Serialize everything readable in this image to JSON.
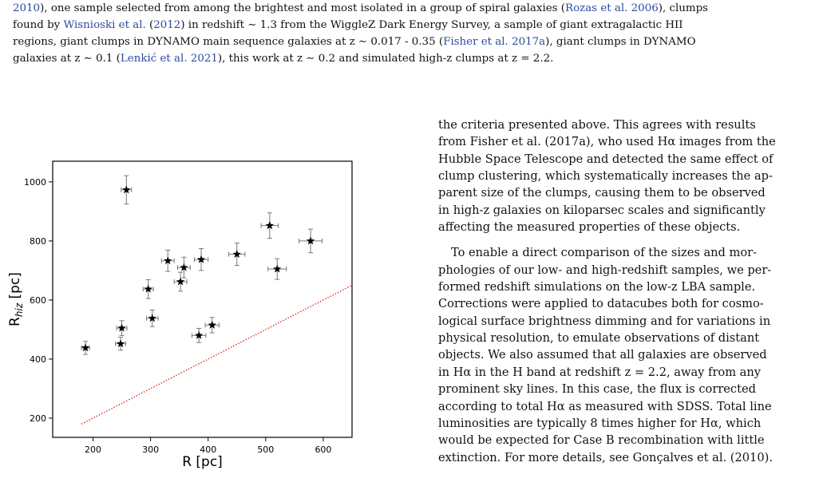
{
  "caption": {
    "lines": [
      [
        "",
        "2010",
        "), one sample selected from among the brightest and most isolated in a group of spiral galaxies (",
        "Rozas et al. 2006",
        "), clumps"
      ],
      [
        "found by ",
        "Wisnioski et al.",
        " (",
        "2012",
        ") in redshift ∼ 1.3 from the WiggleZ Dark Energy Survey, a sample of giant extragalactic HII"
      ],
      [
        "regions, giant clumps in DYNAMO main sequence galaxies at z ∼ 0.017 - 0.35 (",
        "Fisher et al. 2017a",
        "), giant clumps in DYNAMO"
      ],
      [
        "galaxies at z ∼ 0.1 (",
        "Lenkić et al. 2021",
        "), this work at z ∼ 0.2 and simulated high-z clumps at z = 2.2."
      ]
    ]
  },
  "body_text": {
    "para1": [
      "the criteria presented above. This agrees with results",
      "from Fisher et al. (2017a), who used Hα images from the",
      "Hubble Space Telescope and detected the same effect of",
      "clump clustering, which systematically increases the ap-",
      "parent size of the clumps, causing them to be observed",
      "in high-z galaxies on kiloparsec scales and significantly",
      "affecting the measured properties of these objects."
    ],
    "para2": [
      "To enable a direct comparison of the sizes and mor-",
      "phologies of our low- and high-redshift samples, we per-",
      "formed redshift simulations on the low-z LBA sample.",
      "Corrections were applied to datacubes both for cosmo-",
      "logical surface brightness dimming and for variations in",
      "physical resolution, to emulate observations of distant",
      "objects. We also assumed that all galaxies are observed",
      "in Hα in the H band at redshift z = 2.2, away from any",
      "prominent sky lines. In this case, the flux is corrected",
      "according to total Hα as measured with SDSS. Total line",
      "luminosities are typically 8 times higher for Hα, which",
      "would be expected for Case B recombination with little",
      "extinction. For more details, see Gonçalves et al. (2010)."
    ]
  },
  "chart_data": {
    "type": "scatter",
    "xlabel": "R [pc]",
    "ylabel_main": "R",
    "ylabel_sub": "hiz",
    "ylabel_unit": " [pc]",
    "xlim": [
      130,
      650
    ],
    "ylim": [
      135,
      1070
    ],
    "xticks": [
      200,
      300,
      400,
      500,
      600
    ],
    "yticks": [
      200,
      400,
      600,
      800,
      1000
    ],
    "marker": "star",
    "marker_color": "#000000",
    "line_color": "#e02020",
    "line_style": "dotted",
    "points": [
      {
        "x": 187,
        "y": 438,
        "xerr": 7,
        "yerr": 22
      },
      {
        "x": 248,
        "y": 452,
        "xerr": 9,
        "yerr": 22
      },
      {
        "x": 250,
        "y": 505,
        "xerr": 9,
        "yerr": 25
      },
      {
        "x": 258,
        "y": 973,
        "xerr": 9,
        "yerr": 48
      },
      {
        "x": 296,
        "y": 637,
        "xerr": 9,
        "yerr": 32
      },
      {
        "x": 303,
        "y": 538,
        "xerr": 10,
        "yerr": 28
      },
      {
        "x": 330,
        "y": 733,
        "xerr": 11,
        "yerr": 36
      },
      {
        "x": 352,
        "y": 662,
        "xerr": 11,
        "yerr": 32
      },
      {
        "x": 358,
        "y": 710,
        "xerr": 11,
        "yerr": 35
      },
      {
        "x": 384,
        "y": 480,
        "xerr": 12,
        "yerr": 24
      },
      {
        "x": 388,
        "y": 737,
        "xerr": 12,
        "yerr": 37
      },
      {
        "x": 407,
        "y": 515,
        "xerr": 12,
        "yerr": 26
      },
      {
        "x": 450,
        "y": 755,
        "xerr": 14,
        "yerr": 38
      },
      {
        "x": 507,
        "y": 852,
        "xerr": 15,
        "yerr": 43
      },
      {
        "x": 520,
        "y": 705,
        "xerr": 16,
        "yerr": 35
      },
      {
        "x": 578,
        "y": 800,
        "xerr": 20,
        "yerr": 40
      }
    ],
    "reference_line": {
      "x": [
        180,
        650
      ],
      "y": [
        180,
        650
      ]
    }
  }
}
